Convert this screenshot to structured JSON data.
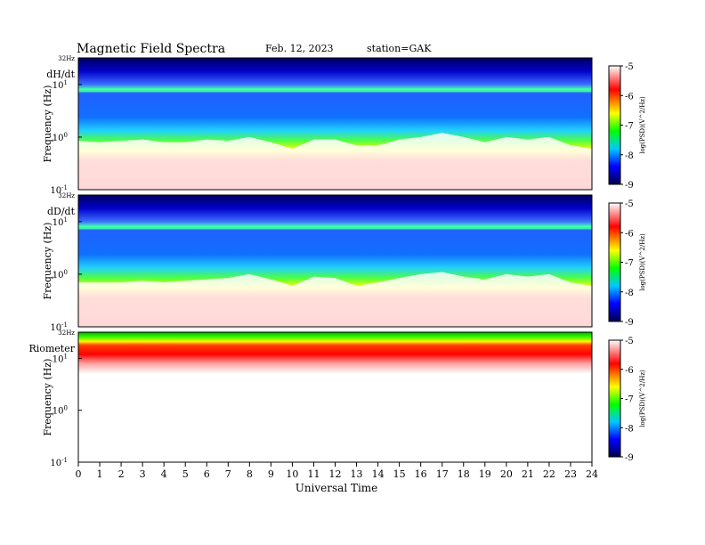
{
  "header": {
    "title": "Magnetic  Field  Spectra",
    "date": "Feb. 12, 2023",
    "station": "station=GAK"
  },
  "colors": {
    "scale": [
      "#000050",
      "#0000ff",
      "#00c8ff",
      "#00ff00",
      "#ffff00",
      "#ff0000",
      "#ffffff"
    ]
  },
  "chart_data": [
    {
      "type": "heatmap",
      "panel_label": "dH/dt",
      "ylabel": "Frequency  (Hz)",
      "ytick_top": "32Hz",
      "yticks": [
        {
          "base": "10",
          "exp": "1"
        },
        {
          "base": "10",
          "exp": "0"
        },
        {
          "base": "10",
          "exp": "-1"
        }
      ],
      "ylim_hz": [
        0.1,
        32
      ],
      "y_scale": "log",
      "xlim_hours": [
        0,
        24
      ],
      "colorbar": {
        "label": "log(PSD)(V^2/Hz)",
        "ticks": [
          "-5",
          "-6",
          "-7",
          "-8",
          "-9"
        ],
        "range": [
          -9,
          -5
        ]
      },
      "noise_floor_hz_by_hour": [
        0.85,
        0.8,
        0.85,
        0.9,
        0.8,
        0.8,
        0.9,
        0.85,
        1.0,
        0.8,
        0.6,
        0.9,
        0.9,
        0.7,
        0.7,
        0.9,
        1.0,
        1.2,
        1.0,
        0.8,
        1.0,
        0.9,
        1.0,
        0.7,
        0.6
      ]
    },
    {
      "type": "heatmap",
      "panel_label": "dD/dt",
      "ylabel": "Frequency  (Hz)",
      "ytick_top": "32Hz",
      "yticks": [
        {
          "base": "10",
          "exp": "1"
        },
        {
          "base": "10",
          "exp": "0"
        },
        {
          "base": "10",
          "exp": "-1"
        }
      ],
      "ylim_hz": [
        0.1,
        32
      ],
      "y_scale": "log",
      "xlim_hours": [
        0,
        24
      ],
      "colorbar": {
        "label": "log(PSD)(V^2/Hz)",
        "ticks": [
          "-5",
          "-6",
          "-7",
          "-8",
          "-9"
        ],
        "range": [
          -9,
          -5
        ]
      },
      "noise_floor_hz_by_hour": [
        0.7,
        0.7,
        0.7,
        0.75,
        0.7,
        0.75,
        0.8,
        0.85,
        1.0,
        0.8,
        0.6,
        0.9,
        0.85,
        0.6,
        0.7,
        0.85,
        1.0,
        1.1,
        0.9,
        0.8,
        1.0,
        0.9,
        1.0,
        0.7,
        0.6
      ]
    },
    {
      "type": "heatmap",
      "panel_label": "Riometer",
      "ylabel": "Frequency  (Hz)",
      "ytick_top": "32Hz",
      "yticks": [
        {
          "base": "10",
          "exp": "1"
        },
        {
          "base": "10",
          "exp": "0"
        },
        {
          "base": "10",
          "exp": "-1"
        }
      ],
      "ylim_hz": [
        0.1,
        32
      ],
      "y_scale": "log",
      "xlim_hours": [
        0,
        24
      ],
      "colorbar": {
        "label": "log(PSD)(V^2/Hz)",
        "ticks": [
          "-5",
          "-6",
          "-7",
          "-8",
          "-9"
        ],
        "range": [
          -9,
          -5
        ]
      }
    }
  ],
  "xaxis": {
    "label": "Universal  Time",
    "ticks": [
      "0",
      "1",
      "2",
      "3",
      "4",
      "5",
      "6",
      "7",
      "8",
      "9",
      "10",
      "11",
      "12",
      "13",
      "14",
      "15",
      "16",
      "17",
      "18",
      "19",
      "20",
      "21",
      "22",
      "23",
      "24"
    ]
  }
}
